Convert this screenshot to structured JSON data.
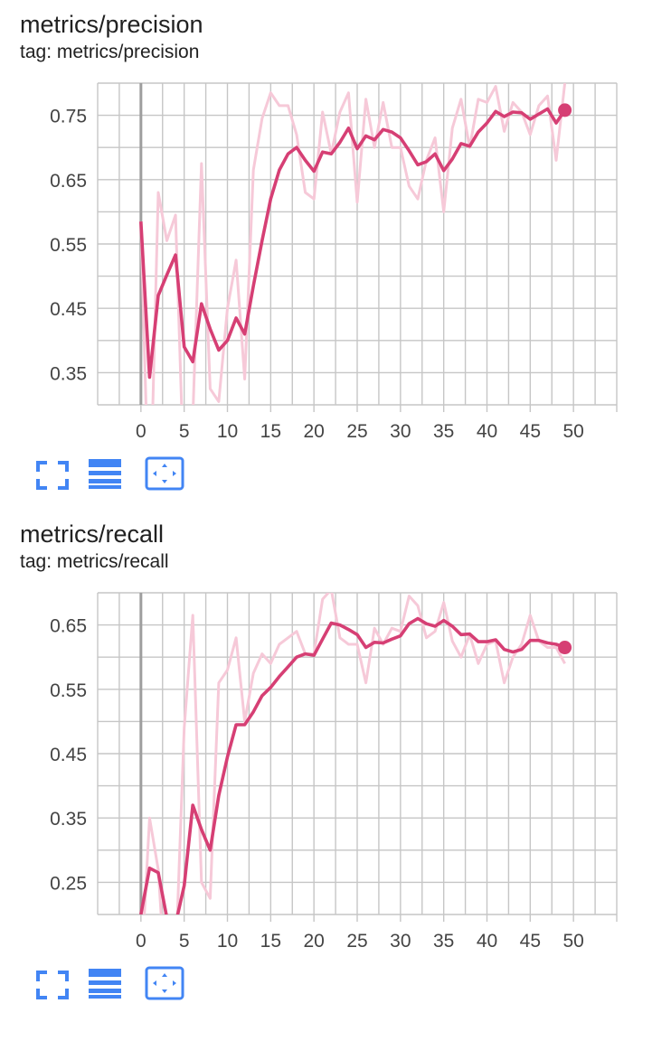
{
  "colors": {
    "smoothed": "#d63f74",
    "raw": "#f6c9d8",
    "grid": "#c6c6c6",
    "zero_line": "#9e9e9e",
    "tool": "#4285f4",
    "text": "#212121"
  },
  "icons": {
    "expand": "fullscreen-icon",
    "lines": "data-table-icon",
    "fit": "fit-domain-icon"
  },
  "charts": [
    {
      "title": "metrics/precision",
      "tag": "tag: metrics/precision"
    },
    {
      "title": "metrics/recall",
      "tag": "tag: metrics/recall"
    }
  ],
  "chart_data": [
    {
      "type": "line",
      "title": "metrics/precision",
      "xlim": [
        -5,
        55
      ],
      "ylim": [
        0.3,
        0.8
      ],
      "x_ticks": [
        0,
        5,
        10,
        15,
        20,
        25,
        30,
        35,
        40,
        45,
        50
      ],
      "y_ticks": [
        0.35,
        0.45,
        0.55,
        0.65,
        0.75
      ],
      "grid": true,
      "series": [
        {
          "role": "raw",
          "x": [
            0,
            1,
            2,
            3,
            4,
            5,
            6,
            7,
            8,
            9,
            10,
            11,
            12,
            13,
            14,
            15,
            16,
            17,
            18,
            19,
            20,
            21,
            22,
            23,
            24,
            25,
            26,
            27,
            28,
            29,
            30,
            31,
            32,
            33,
            34,
            35,
            36,
            37,
            38,
            39,
            40,
            41,
            42,
            43,
            44,
            45,
            46,
            47,
            48,
            49
          ],
          "values": [
            0.585,
            0.1,
            0.63,
            0.555,
            0.595,
            0.17,
            0.28,
            0.675,
            0.325,
            0.305,
            0.45,
            0.525,
            0.34,
            0.665,
            0.745,
            0.785,
            0.765,
            0.765,
            0.72,
            0.63,
            0.62,
            0.755,
            0.69,
            0.755,
            0.785,
            0.615,
            0.775,
            0.7,
            0.77,
            0.7,
            0.7,
            0.64,
            0.62,
            0.68,
            0.715,
            0.6,
            0.73,
            0.775,
            0.7,
            0.775,
            0.77,
            0.795,
            0.725,
            0.77,
            0.755,
            0.72,
            0.765,
            0.78,
            0.68,
            0.8
          ]
        },
        {
          "role": "smoothed",
          "x": [
            0,
            1,
            2,
            3,
            4,
            5,
            6,
            7,
            8,
            9,
            10,
            11,
            12,
            13,
            14,
            15,
            16,
            17,
            18,
            19,
            20,
            21,
            22,
            23,
            24,
            25,
            26,
            27,
            28,
            29,
            30,
            31,
            32,
            33,
            34,
            35,
            36,
            37,
            38,
            39,
            40,
            41,
            42,
            43,
            44,
            45,
            46,
            47,
            48,
            49
          ],
          "values": [
            0.585,
            0.343,
            0.47,
            0.502,
            0.533,
            0.39,
            0.367,
            0.457,
            0.418,
            0.385,
            0.4,
            0.435,
            0.41,
            0.485,
            0.555,
            0.62,
            0.665,
            0.69,
            0.7,
            0.68,
            0.663,
            0.693,
            0.69,
            0.708,
            0.73,
            0.698,
            0.718,
            0.712,
            0.728,
            0.724,
            0.715,
            0.695,
            0.673,
            0.678,
            0.69,
            0.664,
            0.682,
            0.706,
            0.702,
            0.724,
            0.738,
            0.756,
            0.748,
            0.755,
            0.754,
            0.744,
            0.752,
            0.76,
            0.738,
            0.758
          ]
        }
      ]
    },
    {
      "type": "line",
      "title": "metrics/recall",
      "xlim": [
        -5,
        55
      ],
      "ylim": [
        0.2,
        0.7
      ],
      "x_ticks": [
        0,
        5,
        10,
        15,
        20,
        25,
        30,
        35,
        40,
        45,
        50
      ],
      "y_ticks": [
        0.25,
        0.35,
        0.45,
        0.55,
        0.65
      ],
      "grid": true,
      "series": [
        {
          "role": "raw",
          "x": [
            0,
            1,
            2,
            3,
            4,
            5,
            6,
            7,
            8,
            9,
            10,
            11,
            12,
            13,
            14,
            15,
            16,
            17,
            18,
            19,
            20,
            21,
            22,
            23,
            24,
            25,
            26,
            27,
            28,
            29,
            30,
            31,
            32,
            33,
            34,
            35,
            36,
            37,
            38,
            39,
            40,
            41,
            42,
            43,
            44,
            45,
            46,
            47,
            48,
            49
          ],
          "values": [
            0.1,
            0.35,
            0.27,
            0.06,
            0.12,
            0.49,
            0.665,
            0.25,
            0.225,
            0.56,
            0.58,
            0.63,
            0.5,
            0.575,
            0.605,
            0.59,
            0.62,
            0.63,
            0.64,
            0.605,
            0.605,
            0.69,
            0.705,
            0.63,
            0.62,
            0.62,
            0.56,
            0.645,
            0.62,
            0.645,
            0.64,
            0.695,
            0.68,
            0.63,
            0.64,
            0.685,
            0.625,
            0.6,
            0.635,
            0.59,
            0.62,
            0.625,
            0.56,
            0.6,
            0.62,
            0.665,
            0.625,
            0.615,
            0.615,
            0.59
          ]
        },
        {
          "role": "smoothed",
          "x": [
            0,
            1,
            2,
            3,
            4,
            5,
            6,
            7,
            8,
            9,
            10,
            11,
            12,
            13,
            14,
            15,
            16,
            17,
            18,
            19,
            20,
            21,
            22,
            23,
            24,
            25,
            26,
            27,
            28,
            29,
            30,
            31,
            32,
            33,
            34,
            35,
            36,
            37,
            38,
            39,
            40,
            41,
            42,
            43,
            44,
            45,
            46,
            47,
            48,
            49
          ],
          "values": [
            0.2,
            0.272,
            0.265,
            0.195,
            0.185,
            0.245,
            0.37,
            0.332,
            0.3,
            0.385,
            0.445,
            0.495,
            0.495,
            0.515,
            0.54,
            0.553,
            0.57,
            0.585,
            0.6,
            0.605,
            0.603,
            0.628,
            0.653,
            0.65,
            0.643,
            0.635,
            0.615,
            0.623,
            0.622,
            0.628,
            0.633,
            0.652,
            0.66,
            0.652,
            0.648,
            0.657,
            0.648,
            0.635,
            0.636,
            0.624,
            0.624,
            0.627,
            0.612,
            0.608,
            0.612,
            0.626,
            0.626,
            0.622,
            0.62,
            0.615
          ]
        }
      ]
    }
  ]
}
